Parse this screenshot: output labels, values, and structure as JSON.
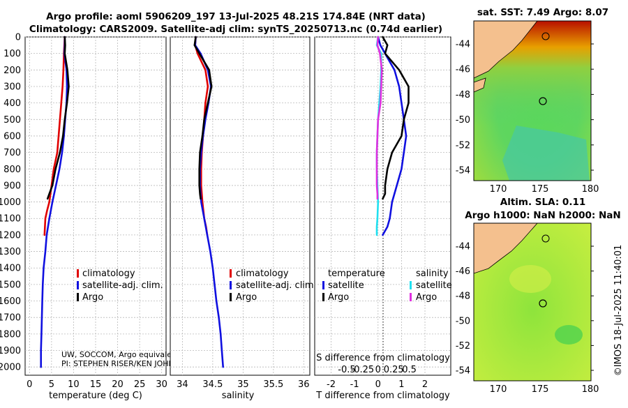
{
  "header": {
    "line1": "Argo profile: aoml 5906209_197 13-Jul-2025 48.21S 174.84E (NRT data)",
    "line2": "Climatology: CARS2009. Satellite-adj clim: synTS_20250713.nc (0.74d earlier)"
  },
  "colors": {
    "climatology": "#e00000",
    "satellite": "#1010e0",
    "argo": "#000000",
    "sat_salinity": "#20e0f0",
    "argo_salinity": "#e030e0"
  },
  "chart_data": [
    {
      "type": "line",
      "title": "",
      "xlabel": "temperature (deg C)",
      "ylabel": "",
      "xlim": [
        -1,
        31
      ],
      "ylim": [
        2050,
        0
      ],
      "xticks": [
        "0",
        "5",
        "10",
        "15",
        "20",
        "25",
        "30"
      ],
      "yticks": [
        "0",
        "100",
        "200",
        "300",
        "400",
        "500",
        "600",
        "700",
        "800",
        "900",
        "1000",
        "1100",
        "1200",
        "1300",
        "1400",
        "1500",
        "1600",
        "1700",
        "1800",
        "1900",
        "2000"
      ],
      "legend": [
        "climatology",
        "satellite-adj. clim.",
        "Argo"
      ],
      "notes": [
        "UW, SOCCOM, Argo equivale",
        "PI: STEPHEN RISER/KEN JOHN"
      ],
      "series": [
        {
          "name": "climatology",
          "color": "#e00000",
          "x": [
            8,
            7.9,
            7.8,
            7.7,
            7.5,
            7.2,
            6.9,
            6.6,
            6.3,
            5.9,
            5.5,
            5,
            4.5,
            4,
            3.6,
            3.4
          ],
          "y": [
            0,
            50,
            100,
            200,
            300,
            400,
            500,
            600,
            700,
            750,
            800,
            900,
            1000,
            1050,
            1100,
            1200
          ]
        },
        {
          "name": "satellite-adj. clim.",
          "color": "#1010e0",
          "x": [
            8,
            8,
            7.9,
            8.4,
            8.5,
            8.4,
            8.1,
            7.8,
            7.4,
            6.8,
            6,
            5.2,
            4.5,
            3.9,
            3.6,
            3.2,
            3,
            2.9,
            2.8,
            2.7,
            2.6,
            2.6
          ],
          "y": [
            0,
            50,
            100,
            200,
            300,
            400,
            500,
            600,
            700,
            800,
            900,
            1000,
            1100,
            1200,
            1300,
            1400,
            1500,
            1600,
            1700,
            1800,
            1900,
            2000
          ]
        },
        {
          "name": "Argo",
          "color": "#000000",
          "x": [
            8,
            8.1,
            8,
            8.6,
            8.9,
            8.5,
            8,
            7.6,
            6.9,
            5.9,
            5.2,
            4.5,
            4.1
          ],
          "y": [
            0,
            50,
            100,
            200,
            300,
            400,
            500,
            600,
            700,
            800,
            900,
            950,
            980
          ]
        }
      ]
    },
    {
      "type": "line",
      "title": "",
      "xlabel": "salinity",
      "ylabel": "",
      "xlim": [
        33.8,
        36.1
      ],
      "ylim": [
        2050,
        0
      ],
      "xticks": [
        "34",
        "34.5",
        "35",
        "35.5",
        "36"
      ],
      "legend": [
        "climatology",
        "satellite-adj. clim.",
        "Argo"
      ],
      "series": [
        {
          "name": "climatology",
          "color": "#e00000",
          "x": [
            34.22,
            34.21,
            34.25,
            34.38,
            34.42,
            34.38,
            34.36,
            34.34,
            34.32,
            34.31,
            34.31,
            34.33,
            34.36,
            34.39,
            34.41
          ],
          "y": [
            0,
            50,
            100,
            200,
            300,
            400,
            500,
            600,
            700,
            800,
            900,
            1000,
            1100,
            1150,
            1200
          ]
        },
        {
          "name": "satellite-adj. clim.",
          "color": "#1010e0",
          "x": [
            34.22,
            34.21,
            34.3,
            34.42,
            34.47,
            34.43,
            34.38,
            34.34,
            34.31,
            34.29,
            34.29,
            34.31,
            34.36,
            34.41,
            34.46,
            34.5,
            34.53,
            34.56,
            34.6,
            34.63,
            34.65,
            34.67
          ],
          "y": [
            0,
            50,
            100,
            200,
            300,
            400,
            500,
            600,
            700,
            800,
            900,
            1000,
            1100,
            1200,
            1300,
            1400,
            1500,
            1600,
            1700,
            1800,
            1900,
            2000
          ]
        },
        {
          "name": "Argo",
          "color": "#000000",
          "x": [
            34.22,
            34.2,
            34.28,
            34.44,
            34.48,
            34.42,
            34.36,
            34.33,
            34.29,
            34.28,
            34.28,
            34.29,
            34.3
          ],
          "y": [
            0,
            50,
            100,
            200,
            300,
            400,
            500,
            600,
            700,
            800,
            900,
            950,
            980
          ]
        }
      ]
    },
    {
      "type": "line",
      "title": "",
      "xlabel": "T difference from climatology",
      "ylabel": "",
      "xlim": [
        -2.7,
        3.1
      ],
      "ylim": [
        2050,
        0
      ],
      "xticks": [
        "-2",
        "-1",
        "0",
        "1",
        "2"
      ],
      "top_axis_label": "S difference from climatology",
      "top_axis_ticks": [
        "-0.5",
        "-0.25",
        "0",
        "0.25",
        "0.5"
      ],
      "legend_temperature": [
        "temperature",
        "satellite",
        "Argo"
      ],
      "legend_salinity": [
        "salinity",
        "satellite",
        "Argo"
      ],
      "series": [
        {
          "name": "temperature satellite",
          "color": "#1010e0",
          "x": [
            0,
            0.1,
            0.3,
            0.7,
            0.9,
            1,
            1.1,
            1.2,
            1.1,
            1,
            0.8,
            0.6,
            0.5,
            0.4,
            0.2
          ],
          "y": [
            0,
            50,
            100,
            200,
            300,
            400,
            500,
            600,
            700,
            800,
            900,
            1000,
            1100,
            1150,
            1200
          ]
        },
        {
          "name": "temperature Argo",
          "color": "#000000",
          "x": [
            0.2,
            0.4,
            0.3,
            0.9,
            1.3,
            1.3,
            1.1,
            1,
            0.6,
            0.4,
            0.3,
            0.3,
            0.2
          ],
          "y": [
            0,
            50,
            100,
            200,
            300,
            400,
            500,
            600,
            700,
            800,
            900,
            950,
            980
          ]
        },
        {
          "name": "salinity satellite",
          "color": "#20e0f0",
          "x": [
            0,
            -0.02,
            0.05,
            0.05,
            0.04,
            0.02,
            0,
            -0.01,
            -0.02,
            -0.02,
            -0.01,
            0,
            -0.01,
            -0.02,
            -0.02
          ],
          "y": [
            0,
            50,
            100,
            200,
            300,
            400,
            500,
            600,
            700,
            800,
            900,
            1000,
            1100,
            1150,
            1200
          ]
        },
        {
          "name": "salinity Argo",
          "color": "#e030e0",
          "x": [
            0,
            -0.01,
            0.03,
            0.06,
            0.05,
            0.04,
            0,
            -0.01,
            -0.02,
            -0.02,
            -0.02,
            -0.01,
            -0.01
          ],
          "y": [
            0,
            50,
            100,
            200,
            300,
            400,
            500,
            600,
            700,
            800,
            900,
            950,
            980
          ]
        }
      ]
    }
  ],
  "maps": {
    "sst": {
      "title": "sat. SST: 7.49 Argo: 8.07",
      "lat_ticks": [
        "-44",
        "-46",
        "-48",
        "-50",
        "-52",
        "-54"
      ],
      "lon_ticks": [
        "170",
        "175",
        "180"
      ]
    },
    "sla": {
      "title1": "Altim. SLA: 0.11",
      "title2": "Argo h1000: NaN h2000: NaN",
      "lat_ticks": [
        "-44",
        "-46",
        "-48",
        "-50",
        "-52",
        "-54"
      ],
      "lon_ticks": [
        "170",
        "175",
        "180"
      ]
    }
  },
  "credit": "©IMOS 18-Jul-2025 11:40:01"
}
